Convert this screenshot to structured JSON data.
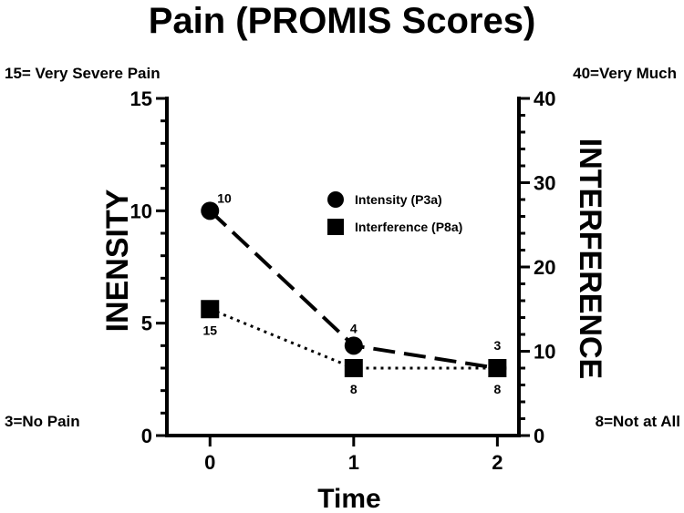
{
  "chart_data": {
    "type": "line",
    "title": "Pain (PROMIS Scores)",
    "xlabel": "Time",
    "ylabel_left": "INENSITY",
    "ylabel_right": "INTERFERENCE",
    "x": [
      0,
      1,
      2
    ],
    "x_tick_labels": [
      "0",
      "1",
      "2"
    ],
    "xlim": [
      -0.3,
      2.15
    ],
    "ylim_left": [
      0,
      15
    ],
    "left_ticks": [
      0,
      5,
      10,
      15
    ],
    "ylim_right": [
      0,
      40
    ],
    "right_ticks": [
      0,
      10,
      20,
      30,
      40
    ],
    "corner_labels": {
      "top_left": "15= Very Severe Pain",
      "bottom_left": "3=No Pain",
      "top_right": "40=Very Much",
      "bottom_right": "8=Not at All"
    },
    "series": [
      {
        "name": "Intensity (P3a)",
        "axis": "left",
        "marker": "circle",
        "line_style": "dashed",
        "values": [
          10,
          4,
          3
        ],
        "data_labels": [
          "10",
          "4",
          "3"
        ]
      },
      {
        "name": "Interference (P8a)",
        "axis": "right",
        "marker": "square",
        "line_style": "dotted",
        "values": [
          15,
          8,
          8
        ],
        "data_labels": [
          "15",
          "8",
          "8"
        ]
      }
    ],
    "grid": false,
    "legend_position": "upper-center",
    "colors": {
      "ink": "#000000",
      "background": "#ffffff"
    }
  }
}
